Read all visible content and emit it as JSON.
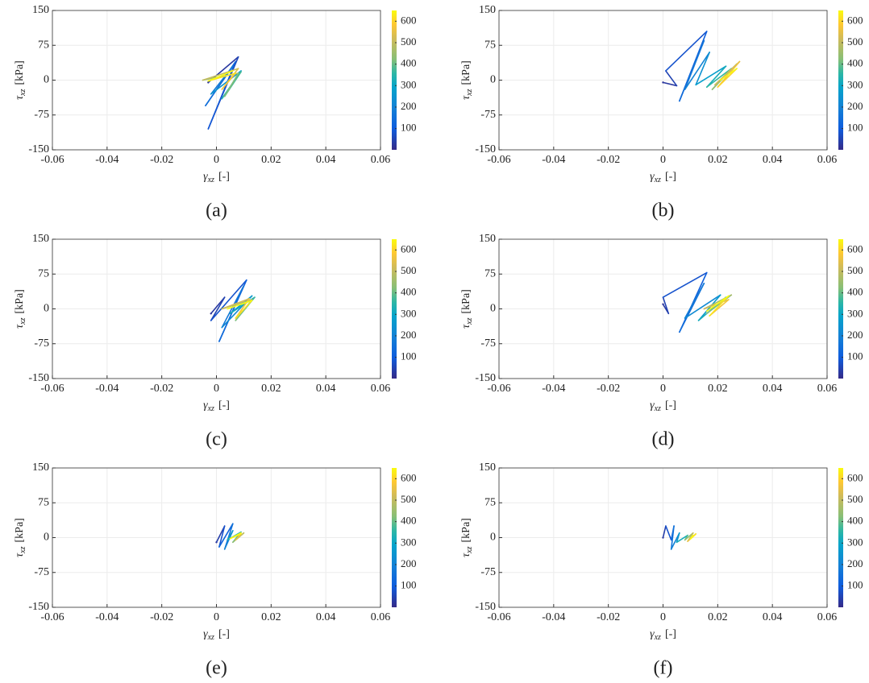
{
  "chart_data": [
    {
      "type": "line",
      "caption": "(a)",
      "xlabel": {
        "symbol": "γ",
        "subscript": "xz",
        "unit": "[-]"
      },
      "ylabel": {
        "symbol": "τ",
        "subscript": "xz",
        "unit": "[kPa]"
      },
      "xlim": [
        -0.06,
        0.06
      ],
      "xticks": [
        -0.06,
        -0.04,
        -0.02,
        0,
        0.02,
        0.04,
        0.06
      ],
      "ylim": [
        -150,
        150
      ],
      "yticks": [
        -150,
        -75,
        0,
        75,
        150
      ],
      "grid": true,
      "colormap": "parula",
      "clim": [
        1,
        650
      ],
      "cticks": [
        100,
        200,
        300,
        400,
        500,
        600
      ],
      "series": [
        {
          "x": [
            -0.003,
            0.008,
            -0.003,
            0.007,
            -0.004,
            0.006,
            -0.002,
            0.009,
            0.002,
            0.009,
            0.003,
            0.008,
            -0.005,
            0.008,
            0.002,
            0.007,
            -0.003,
            0.006
          ],
          "y": [
            -5,
            50,
            -105,
            40,
            -55,
            30,
            -30,
            20,
            -40,
            18,
            -35,
            15,
            0,
            25,
            -20,
            15,
            -2,
            20
          ],
          "c": [
            5,
            30,
            60,
            90,
            120,
            150,
            180,
            250,
            300,
            350,
            380,
            420,
            460,
            500,
            540,
            580,
            620,
            650
          ]
        }
      ]
    },
    {
      "type": "line",
      "caption": "(b)",
      "xlabel": {
        "symbol": "γ",
        "subscript": "xz",
        "unit": "[-]"
      },
      "ylabel": {
        "symbol": "τ",
        "subscript": "xz",
        "unit": "[kPa]"
      },
      "xlim": [
        -0.06,
        0.06
      ],
      "xticks": [
        -0.06,
        -0.04,
        -0.02,
        0,
        0.02,
        0.04,
        0.06
      ],
      "ylim": [
        -150,
        150
      ],
      "yticks": [
        -150,
        -75,
        0,
        75,
        150
      ],
      "grid": true,
      "colormap": "parula",
      "clim": [
        1,
        650
      ],
      "cticks": [
        100,
        200,
        300,
        400,
        500,
        600
      ],
      "series": [
        {
          "x": [
            0,
            0.005,
            0.001,
            0.016,
            0.006,
            0.015,
            0.008,
            0.017,
            0.012,
            0.023,
            0.016,
            0.025,
            0.018,
            0.027,
            0.019,
            0.028,
            0.02,
            0.027,
            0.021
          ],
          "y": [
            -5,
            -12,
            20,
            105,
            -45,
            85,
            -20,
            60,
            -10,
            30,
            -15,
            25,
            -20,
            35,
            -10,
            40,
            -15,
            25,
            0
          ],
          "c": [
            5,
            30,
            50,
            80,
            110,
            140,
            170,
            200,
            240,
            280,
            320,
            360,
            400,
            440,
            480,
            520,
            560,
            600,
            650
          ]
        }
      ]
    },
    {
      "type": "line",
      "caption": "(c)",
      "xlabel": {
        "symbol": "γ",
        "subscript": "xz",
        "unit": "[-]"
      },
      "ylabel": {
        "symbol": "τ",
        "subscript": "xz",
        "unit": "[kPa]"
      },
      "xlim": [
        -0.06,
        0.06
      ],
      "xticks": [
        -0.06,
        -0.04,
        -0.02,
        0,
        0.02,
        0.04,
        0.06
      ],
      "ylim": [
        -150,
        150
      ],
      "yticks": [
        -150,
        -75,
        0,
        75,
        150
      ],
      "grid": true,
      "colormap": "parula",
      "clim": [
        1,
        650
      ],
      "cticks": [
        100,
        200,
        300,
        400,
        500,
        600
      ],
      "series": [
        {
          "x": [
            -0.002,
            0.003,
            -0.002,
            0.011,
            0.001,
            0.01,
            0.002,
            0.013,
            0.005,
            0.014,
            0.007,
            0.013,
            0.002,
            0.012,
            0.007,
            0.013,
            0.004
          ],
          "y": [
            -10,
            25,
            -25,
            62,
            -70,
            50,
            -40,
            28,
            -10,
            25,
            -25,
            20,
            0,
            22,
            -20,
            18,
            0
          ],
          "c": [
            5,
            30,
            50,
            80,
            110,
            140,
            170,
            220,
            270,
            320,
            370,
            420,
            470,
            520,
            570,
            620,
            650
          ]
        }
      ]
    },
    {
      "type": "line",
      "caption": "(d)",
      "xlabel": {
        "symbol": "γ",
        "subscript": "xz",
        "unit": "[-]"
      },
      "ylabel": {
        "symbol": "τ",
        "subscript": "xz",
        "unit": "[kPa]"
      },
      "xlim": [
        -0.06,
        0.06
      ],
      "xticks": [
        -0.06,
        -0.04,
        -0.02,
        0,
        0.02,
        0.04,
        0.06
      ],
      "ylim": [
        -150,
        150
      ],
      "yticks": [
        -150,
        -75,
        0,
        75,
        150
      ],
      "grid": true,
      "colormap": "parula",
      "clim": [
        1,
        650
      ],
      "cticks": [
        100,
        200,
        300,
        400,
        500,
        600
      ],
      "series": [
        {
          "x": [
            0,
            0.002,
            0,
            0.016,
            0.006,
            0.015,
            0.008,
            0.021,
            0.013,
            0.023,
            0.016,
            0.025,
            0.015,
            0.024,
            0.017,
            0.024,
            0.016
          ],
          "y": [
            10,
            -10,
            25,
            78,
            -50,
            55,
            -20,
            30,
            -25,
            25,
            -10,
            30,
            0,
            20,
            -15,
            28,
            -5
          ],
          "c": [
            5,
            30,
            50,
            80,
            110,
            140,
            180,
            220,
            270,
            320,
            370,
            420,
            470,
            520,
            570,
            620,
            650
          ]
        }
      ]
    },
    {
      "type": "line",
      "caption": "(e)",
      "xlabel": {
        "symbol": "γ",
        "subscript": "xz",
        "unit": "[-]"
      },
      "ylabel": {
        "symbol": "τ",
        "subscript": "xz",
        "unit": "[kPa]"
      },
      "xlim": [
        -0.06,
        0.06
      ],
      "xticks": [
        -0.06,
        -0.04,
        -0.02,
        0,
        0.02,
        0.04,
        0.06
      ],
      "ylim": [
        -150,
        150
      ],
      "yticks": [
        -150,
        -75,
        0,
        75,
        150
      ],
      "grid": true,
      "colormap": "parula",
      "clim": [
        1,
        650
      ],
      "cticks": [
        100,
        200,
        300,
        400,
        500,
        600
      ],
      "series": [
        {
          "x": [
            0,
            0.003,
            0.001,
            0.006,
            0.003,
            0.006,
            0.004,
            0.009,
            0.006,
            0.01,
            0.007,
            0.009,
            0.005,
            0.009
          ],
          "y": [
            -10,
            25,
            -20,
            30,
            -25,
            15,
            -5,
            12,
            -10,
            10,
            -5,
            8,
            -2,
            10
          ],
          "c": [
            5,
            40,
            80,
            120,
            160,
            200,
            260,
            320,
            380,
            440,
            500,
            560,
            620,
            650
          ]
        }
      ]
    },
    {
      "type": "line",
      "caption": "(f)",
      "xlabel": {
        "symbol": "γ",
        "subscript": "xz",
        "unit": "[-]"
      },
      "ylabel": {
        "symbol": "τ",
        "subscript": "xz",
        "unit": "[kPa]"
      },
      "xlim": [
        -0.06,
        0.06
      ],
      "xticks": [
        -0.06,
        -0.04,
        -0.02,
        0,
        0.02,
        0.04,
        0.06
      ],
      "ylim": [
        -150,
        150
      ],
      "yticks": [
        -150,
        -75,
        0,
        75,
        150
      ],
      "grid": true,
      "colormap": "parula",
      "clim": [
        1,
        650
      ],
      "cticks": [
        100,
        200,
        300,
        400,
        500,
        600
      ],
      "series": [
        {
          "x": [
            0,
            0.001,
            0.003,
            0.004,
            0.003,
            0.006,
            0.005,
            0.009,
            0.008,
            0.011,
            0.009,
            0.012,
            0.01,
            0.011
          ],
          "y": [
            0,
            25,
            -5,
            25,
            -25,
            10,
            -10,
            5,
            -5,
            10,
            -8,
            8,
            -3,
            5
          ],
          "c": [
            5,
            40,
            80,
            120,
            160,
            200,
            260,
            320,
            380,
            440,
            500,
            560,
            620,
            650
          ]
        }
      ]
    }
  ]
}
